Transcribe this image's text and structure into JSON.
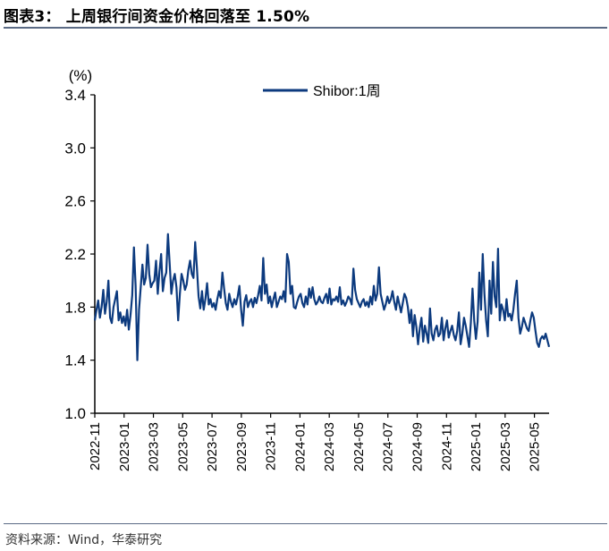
{
  "header": {
    "title": "图表3：  上周银行间资金价格回落至 1.50%"
  },
  "footer": {
    "source": "资料来源：Wind，华泰研究"
  },
  "chart_data": {
    "type": "line",
    "unit_label": "(%)",
    "ylim": [
      1.0,
      3.4
    ],
    "yticks": [
      "1.0",
      "1.4",
      "1.8",
      "2.2",
      "2.6",
      "3.0",
      "3.4"
    ],
    "xticks": [
      "2022-11",
      "2023-01",
      "2023-03",
      "2023-05",
      "2023-07",
      "2023-09",
      "2023-11",
      "2024-01",
      "2024-03",
      "2024-05",
      "2024-07",
      "2024-09",
      "2024-11",
      "2025-01",
      "2025-03",
      "2025-05"
    ],
    "legend_position": "top-center",
    "series": [
      {
        "name": "Shibor:1周",
        "color": "#0c3a7e",
        "x_start": "2022-11",
        "x_end": "2025-06",
        "values": [
          1.7,
          1.78,
          1.85,
          1.72,
          1.8,
          1.93,
          1.75,
          1.84,
          2.0,
          1.72,
          1.68,
          1.8,
          1.86,
          1.92,
          1.7,
          1.76,
          1.68,
          1.73,
          1.66,
          1.78,
          1.63,
          1.74,
          1.89,
          2.25,
          1.96,
          1.4,
          1.78,
          1.95,
          2.12,
          1.97,
          2.02,
          2.27,
          2.05,
          1.95,
          1.98,
          2.0,
          2.15,
          1.9,
          2.07,
          2.2,
          1.92,
          2.02,
          2.06,
          2.35,
          2.13,
          1.9,
          2.0,
          2.05,
          1.95,
          1.7,
          1.9,
          2.05,
          2.0,
          1.93,
          1.97,
          2.08,
          2.15,
          2.05,
          2.02,
          2.29,
          2.1,
          1.88,
          1.79,
          1.92,
          1.78,
          1.86,
          1.98,
          1.82,
          1.86,
          1.8,
          1.83,
          1.78,
          1.86,
          1.92,
          1.87,
          2.06,
          1.94,
          1.83,
          1.78,
          1.9,
          1.84,
          1.8,
          1.86,
          1.82,
          1.88,
          1.96,
          1.78,
          1.66,
          1.84,
          1.89,
          1.8,
          1.84,
          1.86,
          1.8,
          1.87,
          1.83,
          1.89,
          1.96,
          1.85,
          2.17,
          1.9,
          1.97,
          1.83,
          1.88,
          1.8,
          1.86,
          1.91,
          1.8,
          1.84,
          1.88,
          1.86,
          1.92,
          1.84,
          2.2,
          2.14,
          1.9,
          1.96,
          1.8,
          1.79,
          1.84,
          1.88,
          1.9,
          1.83,
          1.8,
          1.88,
          1.82,
          1.94,
          1.87,
          1.95,
          1.86,
          1.82,
          1.84,
          1.88,
          1.84,
          1.83,
          1.87,
          1.9,
          1.83,
          1.94,
          1.82,
          1.86,
          1.85,
          1.88,
          1.84,
          1.95,
          1.82,
          1.85,
          1.81,
          1.84,
          1.88,
          1.86,
          1.82,
          2.09,
          1.93,
          1.86,
          1.83,
          1.8,
          1.84,
          1.86,
          1.81,
          1.84,
          1.8,
          1.88,
          1.82,
          1.96,
          1.85,
          1.9,
          2.1,
          1.9,
          1.84,
          1.78,
          1.82,
          1.88,
          1.83,
          1.86,
          1.92,
          1.84,
          1.78,
          1.88,
          1.82,
          1.76,
          1.83,
          1.9,
          1.87,
          1.8,
          1.68,
          1.78,
          1.58,
          1.74,
          1.65,
          1.52,
          1.64,
          1.72,
          1.54,
          1.66,
          1.6,
          1.53,
          1.79,
          1.6,
          1.55,
          1.63,
          1.66,
          1.58,
          1.6,
          1.72,
          1.55,
          1.64,
          1.7,
          1.57,
          1.62,
          1.66,
          1.59,
          1.55,
          1.62,
          1.76,
          1.52,
          1.6,
          1.72,
          1.66,
          1.58,
          1.5,
          1.68,
          1.94,
          1.7,
          1.56,
          1.69,
          2.06,
          1.78,
          2.2,
          1.9,
          1.7,
          1.58,
          2.0,
          1.75,
          2.14,
          1.88,
          1.8,
          2.24,
          1.7,
          1.82,
          1.78,
          1.7,
          1.86,
          1.73,
          1.75,
          1.7,
          1.78,
          1.9,
          2.0,
          1.72,
          1.6,
          1.65,
          1.72,
          1.68,
          1.64,
          1.62,
          1.7,
          1.76,
          1.72,
          1.62,
          1.53,
          1.5,
          1.56,
          1.58,
          1.56,
          1.6,
          1.55,
          1.5
        ]
      }
    ]
  }
}
